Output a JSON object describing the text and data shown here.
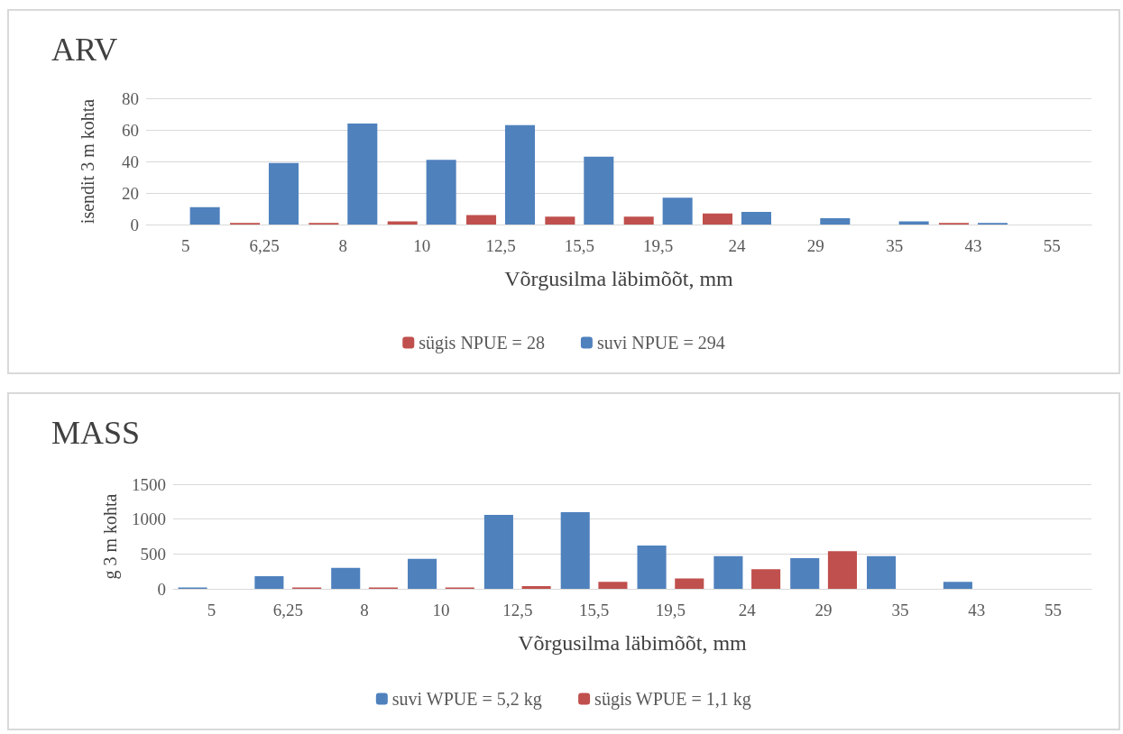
{
  "chart_data": [
    {
      "type": "bar",
      "title": "ARV",
      "xlabel": "Võrgusilma läbimõõt, mm",
      "ylabel": "isendit 3 m kohta",
      "categories": [
        "5",
        "6,25",
        "8",
        "10",
        "12,5",
        "15,5",
        "19,5",
        "24",
        "29",
        "35",
        "43",
        "55"
      ],
      "series": [
        {
          "name": "sügis NPUE = 28",
          "color": "#c0504d",
          "values": [
            0,
            1,
            1,
            2,
            6,
            5,
            5,
            7,
            0,
            0,
            1,
            0
          ]
        },
        {
          "name": "suvi NPUE = 294",
          "color": "#4f81bd",
          "values": [
            11,
            39,
            64,
            41,
            63,
            43,
            17,
            8,
            4,
            2,
            1,
            0
          ]
        }
      ],
      "ylim": [
        0,
        80
      ],
      "yticks": [
        0,
        20,
        40,
        60,
        80
      ],
      "grid": "y",
      "legend": "bottom"
    },
    {
      "type": "bar",
      "title": "MASS",
      "xlabel": "Võrgusilma läbimõõt, mm",
      "ylabel": "g 3 m kohta",
      "categories": [
        "5",
        "6,25",
        "8",
        "10",
        "12,5",
        "15,5",
        "19,5",
        "24",
        "29",
        "35",
        "43",
        "55"
      ],
      "series": [
        {
          "name": "suvi WPUE = 5,2 kg",
          "color": "#4f81bd",
          "values": [
            20,
            180,
            300,
            430,
            1060,
            1100,
            620,
            470,
            440,
            470,
            100,
            0
          ]
        },
        {
          "name": "sügis WPUE = 1,1 kg",
          "color": "#c0504d",
          "values": [
            0,
            20,
            20,
            20,
            40,
            100,
            150,
            280,
            540,
            0,
            0,
            0
          ]
        }
      ],
      "ylim": [
        0,
        1500
      ],
      "yticks": [
        0,
        500,
        1000,
        1500
      ],
      "grid": "y",
      "legend": "bottom"
    }
  ]
}
